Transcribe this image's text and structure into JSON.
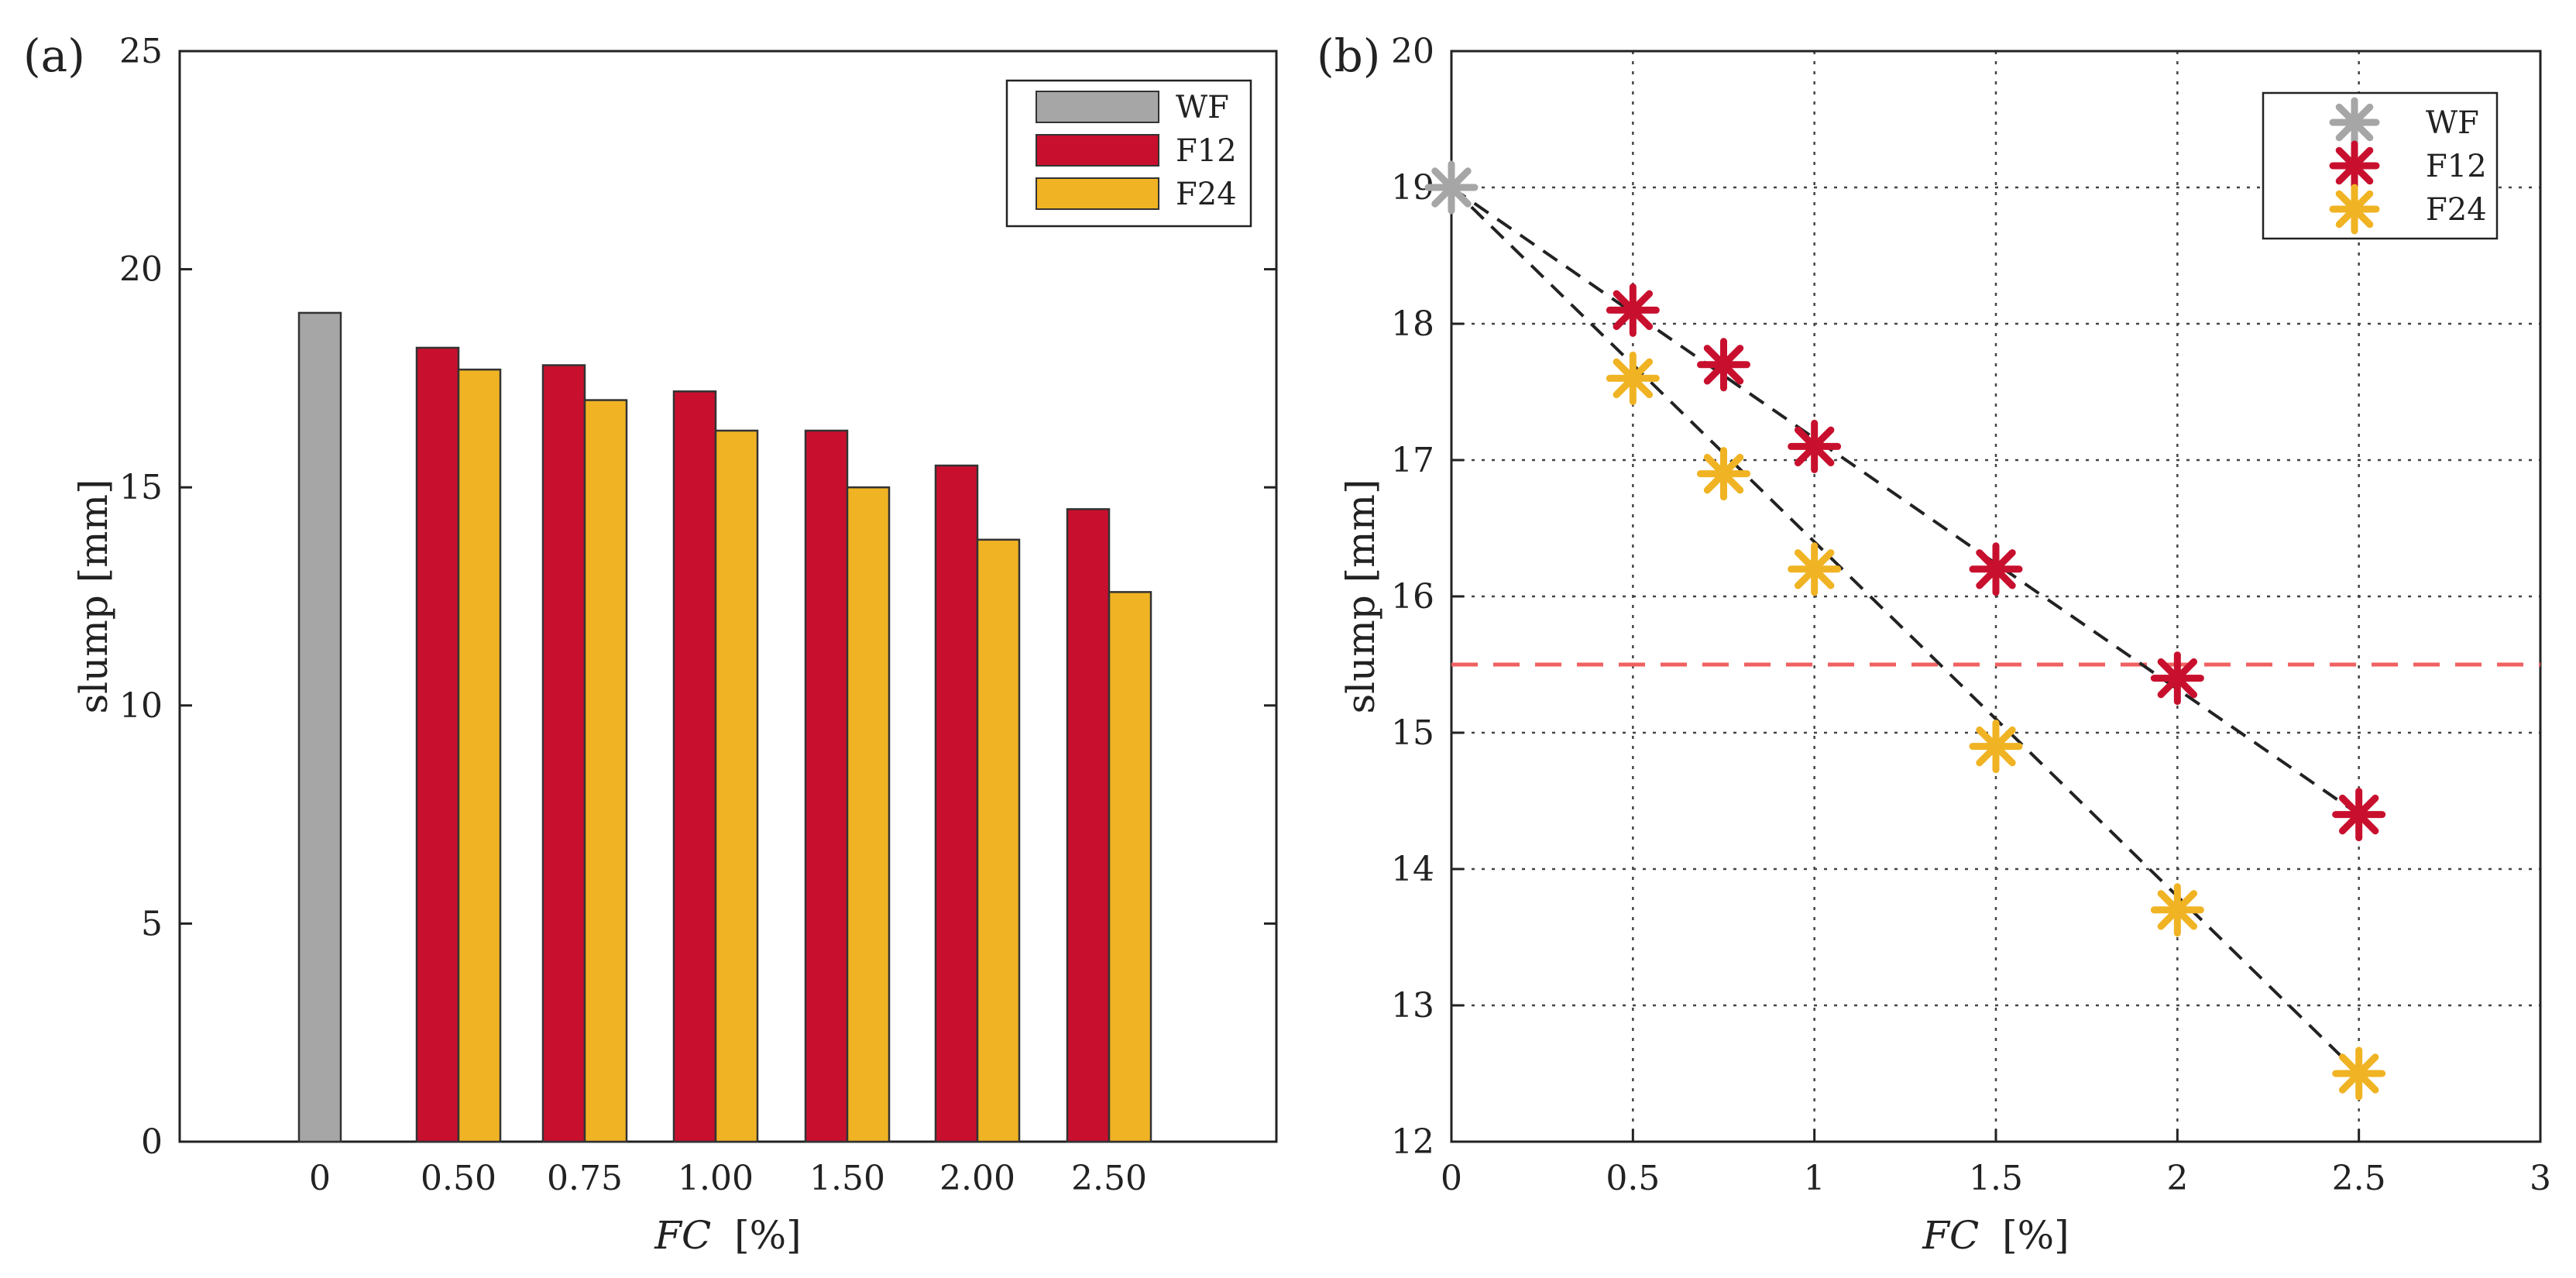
{
  "colors": {
    "WF": "#a6a6a6",
    "F12": "#c8102e",
    "F24": "#f0b323",
    "trend": "#222222",
    "threshold": "#f06060"
  },
  "chart_data": [
    {
      "panel": "(a)",
      "type": "bar",
      "title": "",
      "xlabel_italic": "FC",
      "xlabel_unit": "[%]",
      "ylabel": "slump [mm]",
      "ylim": [
        0,
        25
      ],
      "yticks": [
        "0",
        "5",
        "10",
        "15",
        "20",
        "25"
      ],
      "categories": [
        "0",
        "0.50",
        "0.75",
        "1.00",
        "1.50",
        "2.00",
        "2.50"
      ],
      "series": [
        {
          "name": "WF",
          "values": [
            19.0,
            null,
            null,
            null,
            null,
            null,
            null
          ]
        },
        {
          "name": "F12",
          "values": [
            null,
            18.2,
            17.8,
            17.2,
            16.3,
            15.5,
            14.5
          ]
        },
        {
          "name": "F24",
          "values": [
            null,
            17.7,
            17.0,
            16.3,
            15.0,
            13.8,
            12.6
          ]
        }
      ],
      "legend": [
        "WF",
        "F12",
        "F24"
      ],
      "legend_position": "top-right",
      "grid": false
    },
    {
      "panel": "(b)",
      "type": "scatter",
      "title": "",
      "xlabel_italic": "FC",
      "xlabel_unit": "[%]",
      "ylabel": "slump [mm]",
      "xlim": [
        0,
        3
      ],
      "ylim": [
        12,
        20
      ],
      "xticks": [
        "0",
        "0.5",
        "1",
        "1.5",
        "2",
        "2.5",
        "3"
      ],
      "yticks": [
        "12",
        "13",
        "14",
        "15",
        "16",
        "17",
        "18",
        "19",
        "20"
      ],
      "series": [
        {
          "name": "WF",
          "x": [
            0
          ],
          "y": [
            19.0
          ]
        },
        {
          "name": "F12",
          "x": [
            0.5,
            0.75,
            1.0,
            1.5,
            2.0,
            2.5
          ],
          "y": [
            18.1,
            17.7,
            17.1,
            16.2,
            15.4,
            14.4
          ]
        },
        {
          "name": "F24",
          "x": [
            0.5,
            0.75,
            1.0,
            1.5,
            2.0,
            2.5
          ],
          "y": [
            17.6,
            16.9,
            16.2,
            14.9,
            13.7,
            12.5
          ]
        }
      ],
      "trend_lines": [
        {
          "name": "F12 trend",
          "x": [
            0,
            2.5
          ],
          "y": [
            19.0,
            14.4
          ]
        },
        {
          "name": "F24 trend",
          "x": [
            0,
            2.5
          ],
          "y": [
            19.0,
            12.5
          ]
        }
      ],
      "threshold_line": {
        "y": 15.5
      },
      "legend": [
        "WF",
        "F12",
        "F24"
      ],
      "legend_position": "top-right",
      "grid": true
    }
  ]
}
